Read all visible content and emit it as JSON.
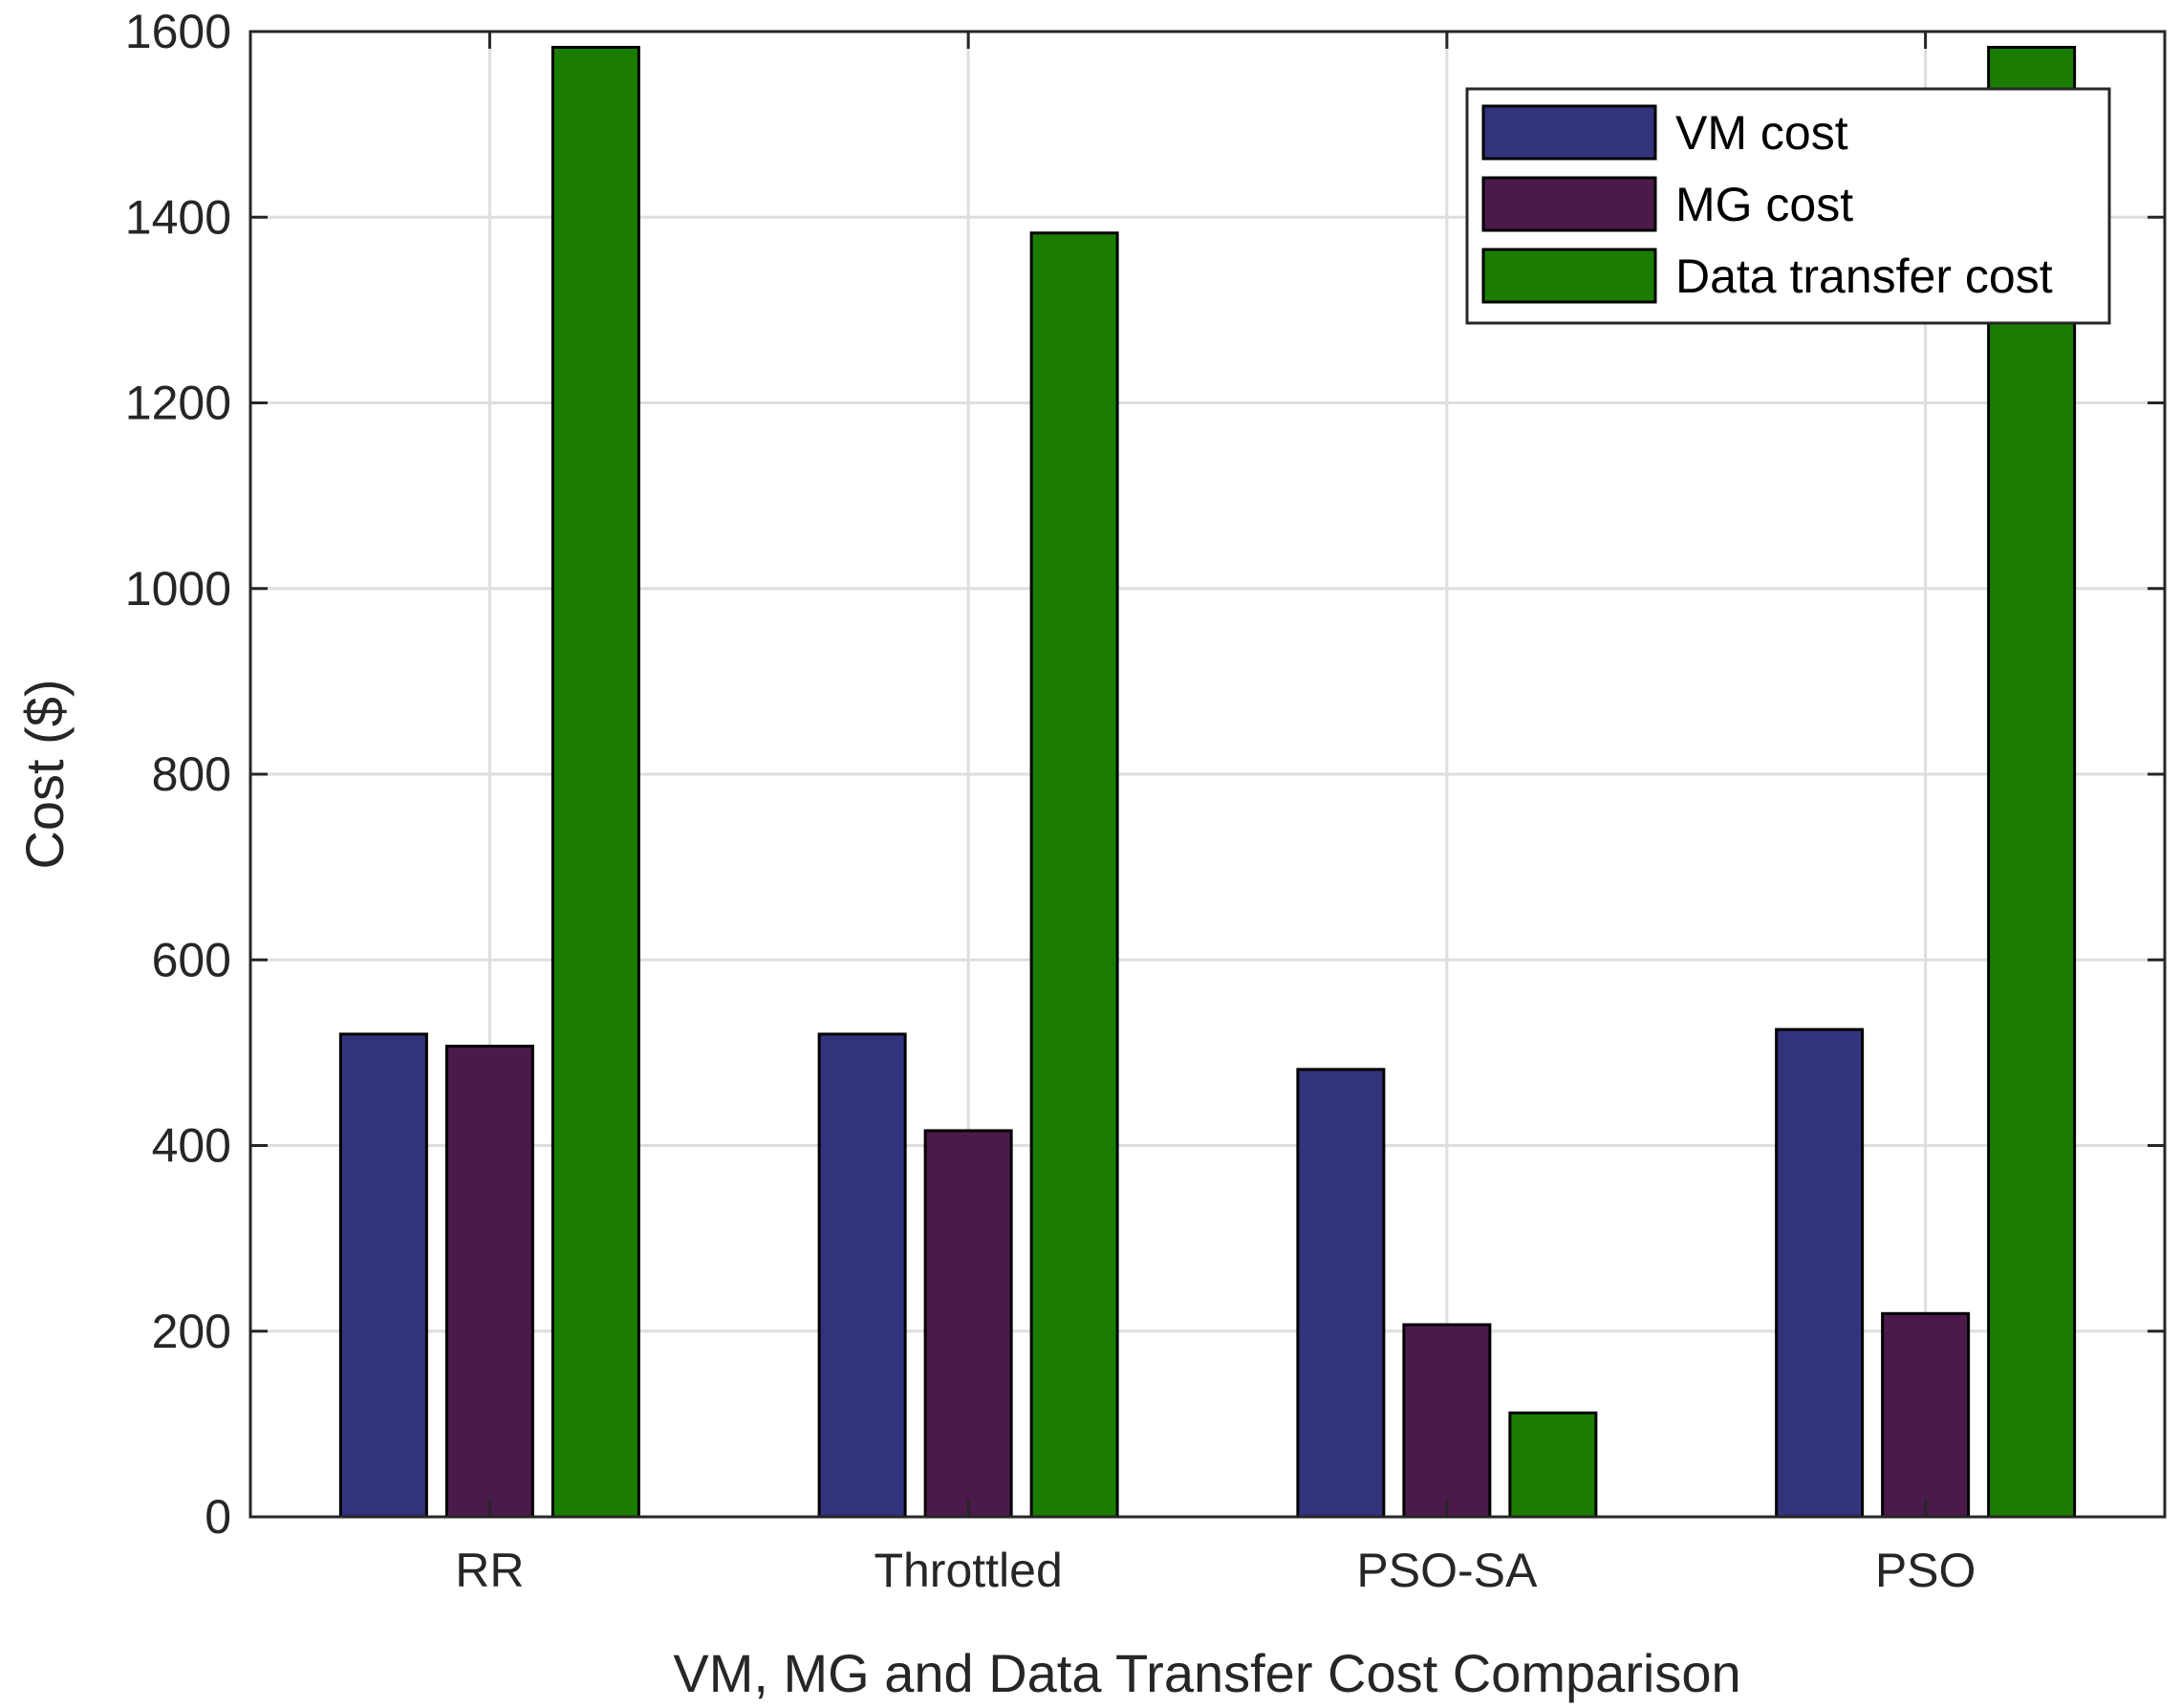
{
  "chart_data": {
    "type": "bar",
    "title": "",
    "xlabel": "VM, MG and Data Transfer Cost Comparison",
    "ylabel": "Cost ($)",
    "categories": [
      "RR",
      "Throttled",
      "PSO-SA",
      "PSO"
    ],
    "series": [
      {
        "name": "VM cost",
        "color": "#33337d",
        "values": [
          520,
          520,
          482,
          525
        ]
      },
      {
        "name": "MG cost",
        "color": "#4b1a4a",
        "values": [
          507,
          416,
          207,
          219
        ]
      },
      {
        "name": "Data transfer cost",
        "color": "#1a7d00",
        "values": [
          1583,
          1383,
          112,
          1583
        ]
      }
    ],
    "ylim": [
      0,
      1600
    ],
    "yticks": [
      0,
      200,
      400,
      600,
      800,
      1000,
      1200,
      1400,
      1600
    ],
    "ytick_labels": [
      "0",
      "200",
      "400",
      "600",
      "800",
      "1000",
      "1200",
      "1400",
      "1600"
    ],
    "grid": true,
    "legend_position": "top-right"
  }
}
